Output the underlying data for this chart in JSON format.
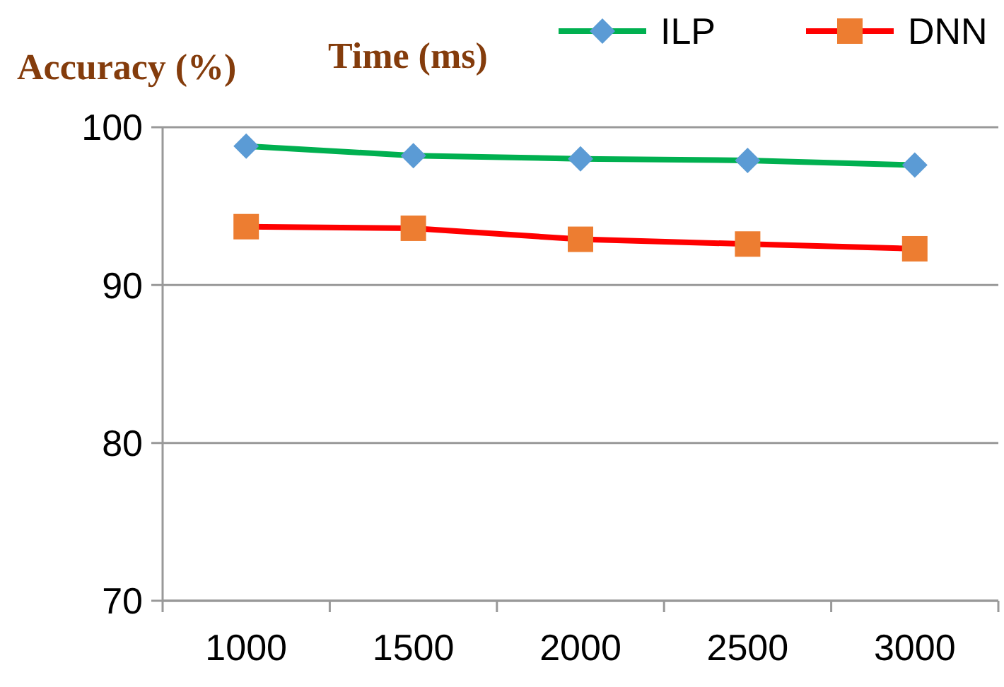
{
  "chart_data": {
    "type": "line",
    "ylabel": "Accuracy (%)",
    "xlabel": "Time (ms)",
    "categories": [
      "1000",
      "1500",
      "2000",
      "2500",
      "3000"
    ],
    "series": [
      {
        "name": "ILP",
        "color": "#00b050",
        "marker": "diamond",
        "colors": [
          "#5b9bd5",
          "#5b9bd5",
          "#5b9bd5",
          "#5b9bd5",
          "#5b9bd5"
        ],
        "values": [
          98.8,
          98.2,
          98.0,
          97.9,
          97.6
        ]
      },
      {
        "name": "DNN",
        "color": "#ff0000",
        "marker": "square",
        "colors": [
          "#ed7d31",
          "#ed7d31",
          "#ed7d31",
          "#ed7d31",
          "#ed7d31"
        ],
        "values": [
          93.7,
          93.6,
          92.9,
          92.6,
          92.3
        ]
      }
    ],
    "ylim": [
      70,
      100
    ],
    "yticks": [
      70,
      80,
      90,
      100
    ],
    "grid": "y",
    "legend": "top right"
  }
}
